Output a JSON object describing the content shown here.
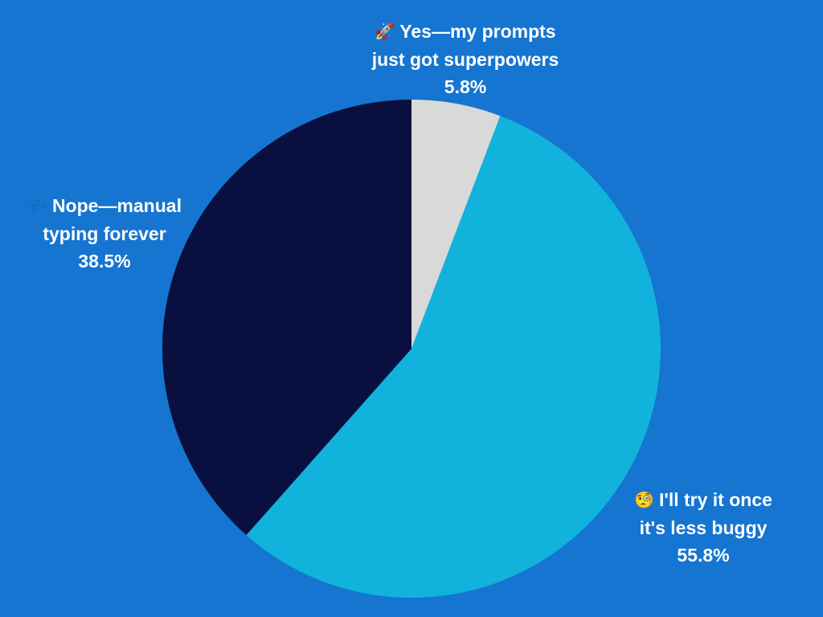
{
  "page": {
    "background": "#1575d0"
  },
  "chart_data": {
    "type": "pie",
    "title": "",
    "start_angle_deg": 0,
    "direction": "clockwise",
    "slices": [
      {
        "label_line1": "Yes—my prompts",
        "label_line2": "just got superpowers",
        "icon": "rocket-icon",
        "emoji": "🚀",
        "value": 5.8,
        "value_label": "5.8%",
        "color": "#d9d9d9"
      },
      {
        "label_line1": "I'll try it once",
        "label_line2": "it's less buggy",
        "icon": "monocle-face-icon",
        "emoji": "🧐",
        "value": 55.8,
        "value_label": "55.8%",
        "color": "#11b2dc"
      },
      {
        "label_line1": "Nope—manual",
        "label_line2": "typing forever",
        "icon": "zzz-icon",
        "emoji": "💤",
        "value": 38.5,
        "value_label": "38.5%",
        "color": "#09103f"
      }
    ]
  }
}
